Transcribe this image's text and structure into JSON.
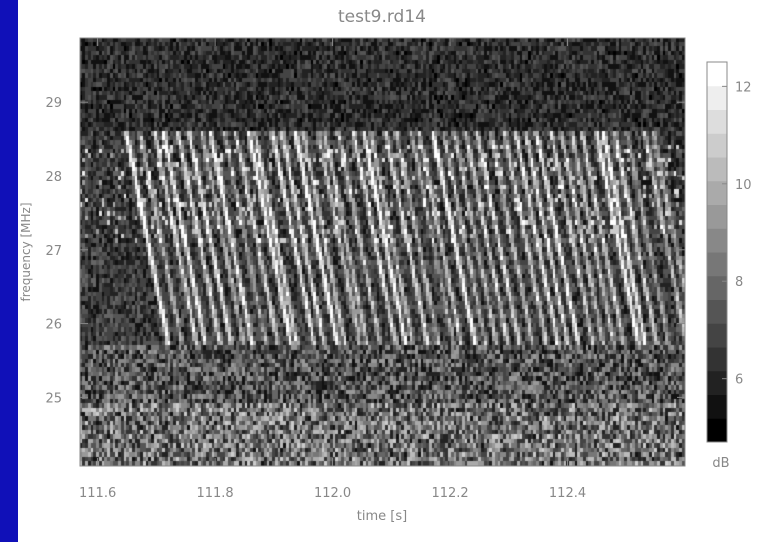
{
  "chart_data": {
    "type": "heatmap",
    "title": "test9.rd14",
    "xlabel": "time [s]",
    "ylabel": "frequency [MHz]",
    "xlim": [
      111.57,
      112.6
    ],
    "ylim": [
      24.07,
      29.87
    ],
    "x_ticks": [
      111.6,
      111.8,
      112.0,
      112.2,
      112.4
    ],
    "x_tick_labels": [
      "111.6",
      "111.8",
      "112.0",
      "112.2",
      "112.4"
    ],
    "y_ticks": [
      25,
      26,
      27,
      28,
      29
    ],
    "y_tick_labels": [
      "25",
      "26",
      "27",
      "28",
      "29"
    ],
    "colorbar": {
      "label": "dB",
      "range": [
        4.7,
        12.5
      ],
      "ticks": [
        6,
        8,
        10,
        12
      ],
      "tick_labels": [
        "6",
        "8",
        "10",
        "12"
      ],
      "levels": 16,
      "colormap": "grayscale"
    },
    "features": {
      "burst_band_mhz": [
        25.7,
        28.6
      ],
      "burst_start_s": 111.66,
      "burst_drift_mhz_per_s": -40
    }
  }
}
